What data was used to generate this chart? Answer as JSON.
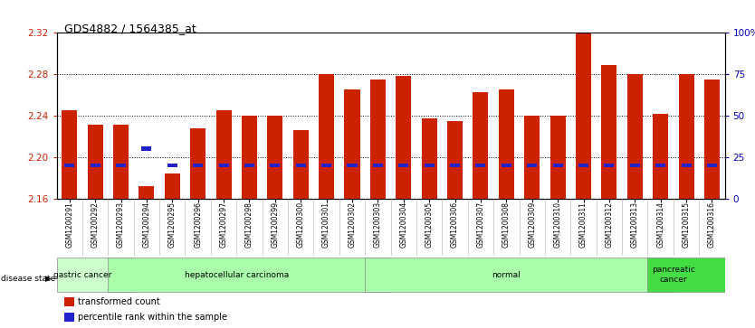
{
  "title": "GDS4882 / 1564385_at",
  "samples": [
    "GSM1200291",
    "GSM1200292",
    "GSM1200293",
    "GSM1200294",
    "GSM1200295",
    "GSM1200296",
    "GSM1200297",
    "GSM1200298",
    "GSM1200299",
    "GSM1200300",
    "GSM1200301",
    "GSM1200302",
    "GSM1200303",
    "GSM1200304",
    "GSM1200305",
    "GSM1200306",
    "GSM1200307",
    "GSM1200308",
    "GSM1200309",
    "GSM1200310",
    "GSM1200311",
    "GSM1200312",
    "GSM1200313",
    "GSM1200314",
    "GSM1200315",
    "GSM1200316"
  ],
  "transformed_count": [
    2.245,
    2.231,
    2.231,
    2.172,
    2.184,
    2.228,
    2.245,
    2.24,
    2.24,
    2.226,
    2.28,
    2.265,
    2.275,
    2.278,
    2.237,
    2.235,
    2.263,
    2.265,
    2.24,
    2.24,
    2.32,
    2.289,
    2.28,
    2.242,
    2.28,
    2.275
  ],
  "percentile_rank": [
    20,
    20,
    20,
    30,
    20,
    20,
    20,
    20,
    20,
    20,
    20,
    20,
    20,
    20,
    20,
    20,
    20,
    20,
    20,
    20,
    20,
    20,
    20,
    20,
    20,
    20
  ],
  "bar_color": "#cc2200",
  "percentile_color": "#2222cc",
  "ymin": 2.16,
  "ymax": 2.32,
  "yticks": [
    2.16,
    2.2,
    2.24,
    2.28,
    2.32
  ],
  "right_yticks": [
    0,
    25,
    50,
    75,
    100
  ],
  "right_ytick_labels": [
    "0",
    "25",
    "50",
    "75",
    "100%"
  ],
  "disease_groups": [
    {
      "label": "gastric cancer",
      "start": 0,
      "end": 2,
      "color": "#ccffcc"
    },
    {
      "label": "hepatocellular carcinoma",
      "start": 2,
      "end": 12,
      "color": "#aaffaa"
    },
    {
      "label": "normal",
      "start": 12,
      "end": 23,
      "color": "#aaffaa"
    },
    {
      "label": "pancreatic\ncancer",
      "start": 23,
      "end": 25,
      "color": "#44dd44"
    }
  ],
  "disease_state_label": "disease state",
  "legend_items": [
    {
      "label": "transformed count",
      "color": "#cc2200"
    },
    {
      "label": "percentile rank within the sample",
      "color": "#2222cc"
    }
  ],
  "bar_width": 0.6,
  "background_color": "#ffffff",
  "tick_label_color_left": "#cc2200",
  "tick_label_color_right": "#0000bb",
  "xtick_bg": "#dddddd"
}
